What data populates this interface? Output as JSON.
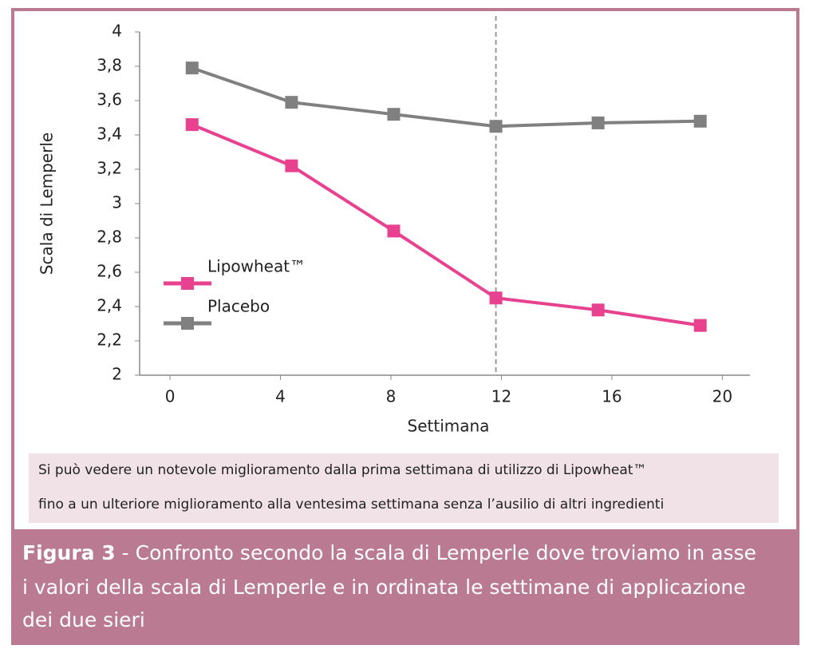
{
  "chart_data": {
    "type": "line",
    "y_label": "Scala di Lemperle",
    "x_label": "Settimana",
    "x": [
      0.8,
      4.4,
      8.1,
      11.8,
      15.5,
      19.2
    ],
    "series": [
      {
        "name": "Lipowheat™",
        "color": "#e8418f",
        "values": [
          3.46,
          3.22,
          2.84,
          2.45,
          2.38,
          2.29
        ]
      },
      {
        "name": "Placebo",
        "color": "#808080",
        "values": [
          3.79,
          3.59,
          3.52,
          3.45,
          3.47,
          3.48
        ]
      }
    ],
    "xlim": [
      -1.1,
      21
    ],
    "xticks": [
      0,
      4,
      8,
      12,
      16,
      20
    ],
    "ylim": [
      2,
      4
    ],
    "yticks": [
      2,
      {
        "value": 2.2,
        "label": "2,2"
      },
      {
        "value": 2.4,
        "label": "2,4"
      },
      {
        "value": 2.6,
        "label": "2,6"
      },
      {
        "value": 2.8,
        "label": "2,8"
      },
      3,
      {
        "value": 3.2,
        "label": "3,2"
      },
      {
        "value": 3.4,
        "label": "3,4"
      },
      {
        "value": 3.6,
        "label": "3,6"
      },
      {
        "value": 3.8,
        "label": "3,8"
      },
      4
    ],
    "vline": 11.8,
    "legend": "left"
  },
  "note": [
    "Si può vedere un notevole miglioramento dalla prima settimana di utilizzo di Lipowheat™",
    "fino a un ulteriore miglioramento alla ventesima settimana senza l’ausilio di altri ingredienti"
  ],
  "caption": {
    "label": "Figura 3",
    "lines": [
      "-  Confronto secondo la scala di Lemperle dove troviamo in asse",
      "i valori della scala di Lemperle e in ordinata le settimane di applicazione",
      "dei due sieri"
    ]
  }
}
